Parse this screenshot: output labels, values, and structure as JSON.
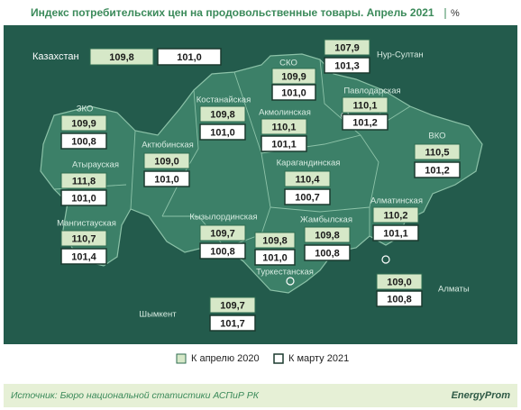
{
  "title": "Индекс потребительских цен на продовольственные товары. Апрель 2021",
  "unit": "%",
  "regions": [
    {
      "name": "Казахстан",
      "apr2020": "109,8",
      "mar2021": "101,0"
    },
    {
      "name": "Нур-Султан",
      "apr2020": "107,9",
      "mar2021": "101,3"
    },
    {
      "name": "СКО",
      "apr2020": "109,9",
      "mar2021": "101,0"
    },
    {
      "name": "Костанайская",
      "apr2020": "109,8",
      "mar2021": "101,0"
    },
    {
      "name": "Павлодарская",
      "apr2020": "110,1",
      "mar2021": "101,2"
    },
    {
      "name": "Акмолинская",
      "apr2020": "110,1",
      "mar2021": "101,1"
    },
    {
      "name": "ЗКО",
      "apr2020": "109,9",
      "mar2021": "100,8"
    },
    {
      "name": "Актюбинская",
      "apr2020": "109,0",
      "mar2021": "101,0"
    },
    {
      "name": "ВКО",
      "apr2020": "110,5",
      "mar2021": "101,2"
    },
    {
      "name": "Карагандинская",
      "apr2020": "110,4",
      "mar2021": "100,7"
    },
    {
      "name": "Атырауская",
      "apr2020": "111,8",
      "mar2021": "101,0"
    },
    {
      "name": "Мангистауская",
      "apr2020": "110,7",
      "mar2021": "101,4"
    },
    {
      "name": "Кызылординская",
      "apr2020": "109,7",
      "mar2021": "100,8"
    },
    {
      "name": "Алматинская",
      "apr2020": "110,2",
      "mar2021": "101,1"
    },
    {
      "name": "Жамбылская",
      "apr2020": "109,8",
      "mar2021": "100,8"
    },
    {
      "name": "Туркестанская",
      "apr2020": "109,8",
      "mar2021": "101,0"
    },
    {
      "name": "Алматы",
      "apr2020": "109,0",
      "mar2021": "100,8"
    },
    {
      "name": "Шымкент",
      "apr2020": "109,7",
      "mar2021": "101,7"
    }
  ],
  "legend": [
    "К апрелю 2020",
    "К марту 2021"
  ],
  "source": "Источник: Бюро национальной  статистики АСПиР РК",
  "logo": "EnergyProm"
}
